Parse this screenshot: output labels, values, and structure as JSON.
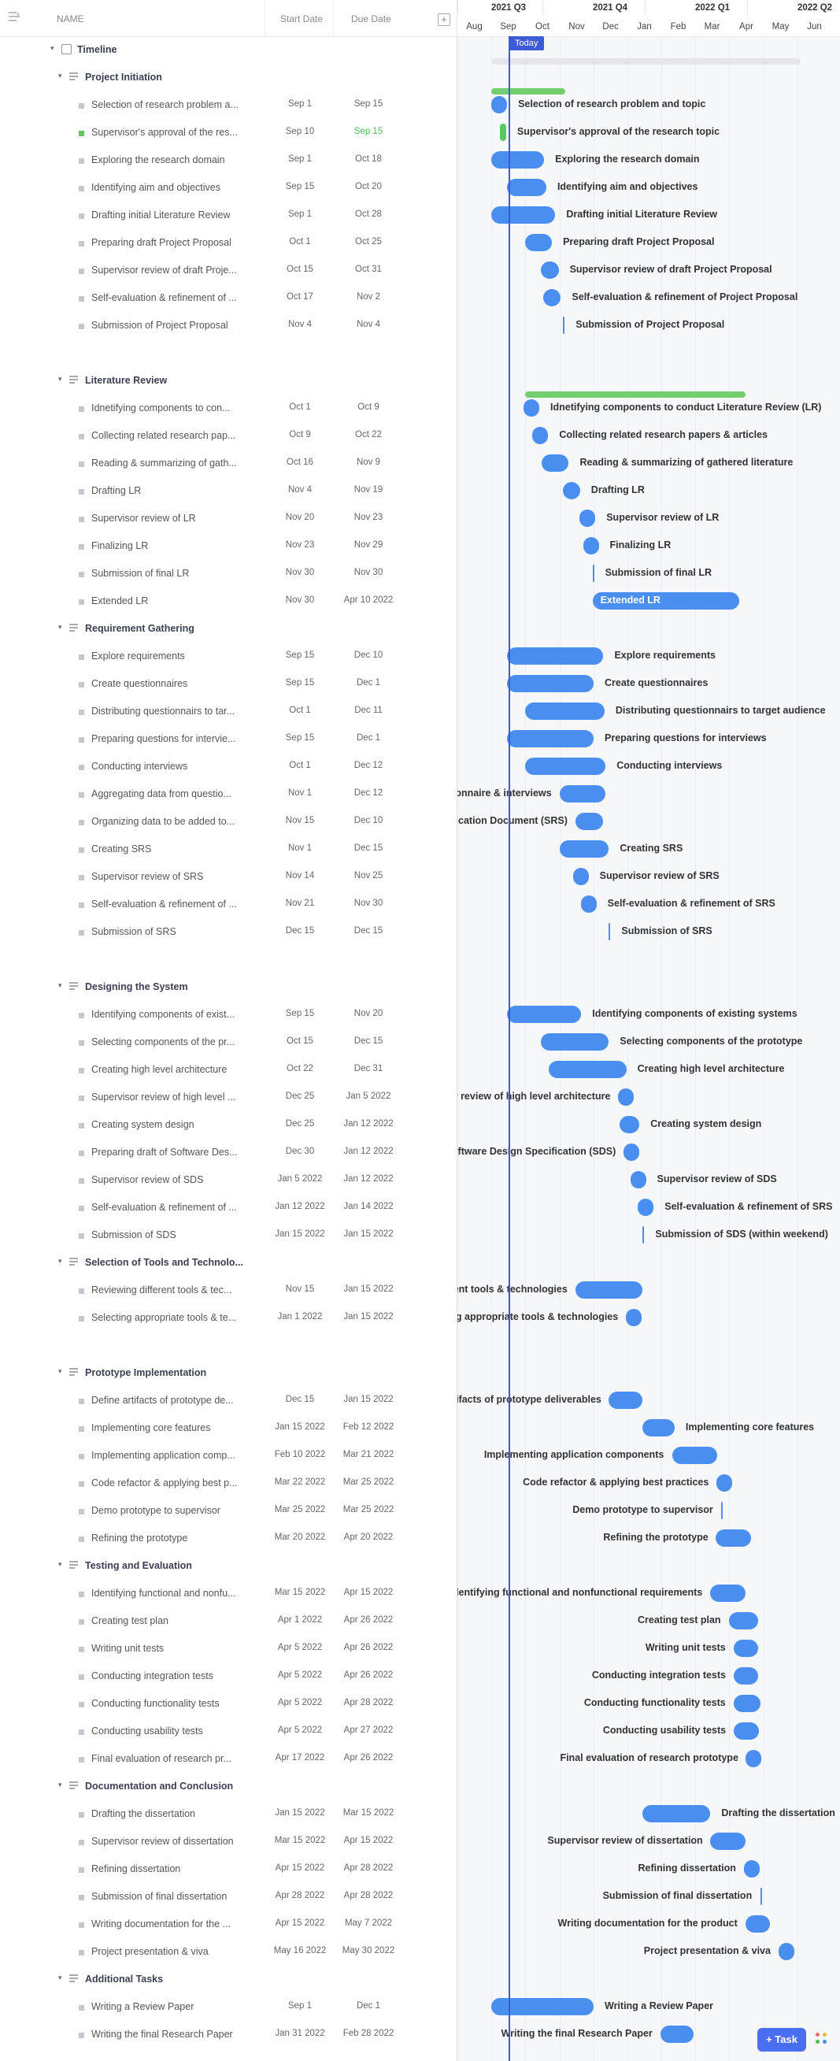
{
  "header": {
    "name": "NAME",
    "start": "Start Date",
    "due": "Due Date"
  },
  "gantt": {
    "quarters": [
      "2021 Q3",
      "2021 Q4",
      "2022 Q1",
      "2022 Q2"
    ],
    "months": [
      "Aug",
      "Sep",
      "Oct",
      "Nov",
      "Dec",
      "Jan",
      "Feb",
      "Mar",
      "Apr",
      "May",
      "Jun"
    ],
    "today": "Today"
  },
  "task_button": "+ Task",
  "rows": [
    {
      "kind": "top",
      "name": "Timeline"
    },
    {
      "kind": "group",
      "name": "Project Initiation"
    },
    {
      "kind": "task",
      "name": "Selection of research problem a...",
      "start": "Sep 1",
      "due": "Sep 15",
      "label": "Selection of research problem and topic"
    },
    {
      "kind": "task",
      "name": "Supervisor's approval of the res...",
      "start": "Sep 10",
      "due": "Sep 15",
      "label": "Supervisor's approval of the research topic",
      "status": "green"
    },
    {
      "kind": "task",
      "name": "Exploring the research domain",
      "start": "Sep 1",
      "due": "Oct 18",
      "label": "Exploring the research domain"
    },
    {
      "kind": "task",
      "name": "Identifying aim and objectives",
      "start": "Sep 15",
      "due": "Oct 20",
      "label": "Identifying aim and objectives"
    },
    {
      "kind": "task",
      "name": "Drafting initial Literature Review",
      "start": "Sep 1",
      "due": "Oct 28",
      "label": "Drafting initial Literature Review"
    },
    {
      "kind": "task",
      "name": "Preparing draft Project Proposal",
      "start": "Oct 1",
      "due": "Oct 25",
      "label": "Preparing draft Project Proposal"
    },
    {
      "kind": "task",
      "name": "Supervisor review of draft Proje...",
      "start": "Oct 15",
      "due": "Oct 31",
      "label": "Supervisor review of draft Project Proposal"
    },
    {
      "kind": "task",
      "name": "Self-evaluation & refinement of ...",
      "start": "Oct 17",
      "due": "Nov 2",
      "label": "Self-evaluation & refinement of Project Proposal"
    },
    {
      "kind": "task",
      "name": "Submission of Project Proposal",
      "start": "Nov 4",
      "due": "Nov 4",
      "label": "Submission of Project Proposal"
    },
    {
      "kind": "blank"
    },
    {
      "kind": "group",
      "name": "Literature Review"
    },
    {
      "kind": "task",
      "name": "Idnetifying components to con...",
      "start": "Oct 1",
      "due": "Oct 9",
      "label": "Idnetifying components to conduct Literature Review (LR)"
    },
    {
      "kind": "task",
      "name": "Collecting related research pap...",
      "start": "Oct 9",
      "due": "Oct 22",
      "label": "Collecting related research papers & articles"
    },
    {
      "kind": "task",
      "name": "Reading & summarizing of gath...",
      "start": "Oct 16",
      "due": "Nov 9",
      "label": "Reading & summarizing of gathered literature"
    },
    {
      "kind": "task",
      "name": "Drafting LR",
      "start": "Nov 4",
      "due": "Nov 19",
      "label": "Drafting LR"
    },
    {
      "kind": "task",
      "name": "Supervisor review of LR",
      "start": "Nov 20",
      "due": "Nov 23",
      "label": "Supervisor review of LR"
    },
    {
      "kind": "task",
      "name": "Finalizing LR",
      "start": "Nov 23",
      "due": "Nov 29",
      "label": "Finalizing LR"
    },
    {
      "kind": "task",
      "name": "Submission of final LR",
      "start": "Nov 30",
      "due": "Nov 30",
      "label": "Submission of final LR"
    },
    {
      "kind": "task",
      "name": "Extended LR",
      "start": "Nov 30",
      "due": "Apr 10 2022",
      "label": "Extended LR"
    },
    {
      "kind": "group",
      "name": "Requirement Gathering"
    },
    {
      "kind": "task",
      "name": "Explore requirements",
      "start": "Sep 15",
      "due": "Dec 10",
      "label": "Explore requirements"
    },
    {
      "kind": "task",
      "name": "Create questionnaires",
      "start": "Sep 15",
      "due": "Dec 1",
      "label": "Create questionnaires"
    },
    {
      "kind": "task",
      "name": "Distributing questionnairs to tar...",
      "start": "Oct 1",
      "due": "Dec 11",
      "label": "Distributing questionnairs to target audience"
    },
    {
      "kind": "task",
      "name": "Preparing questions for intervie...",
      "start": "Sep 15",
      "due": "Dec 1",
      "label": "Preparing questions for interviews"
    },
    {
      "kind": "task",
      "name": "Conducting interviews",
      "start": "Oct 1",
      "due": "Dec 12",
      "label": "Conducting interviews"
    },
    {
      "kind": "task",
      "name": "Aggregating data from questio...",
      "start": "Nov 1",
      "due": "Dec 12",
      "label": "Aggregating data from questionnaire & interviews"
    },
    {
      "kind": "task",
      "name": "Organizing data to be added to...",
      "start": "Nov 15",
      "due": "Dec 10",
      "label": "Organizing data to be added to Software Requirement Specification Document (SRS)"
    },
    {
      "kind": "task",
      "name": "Creating SRS",
      "start": "Nov 1",
      "due": "Dec 15",
      "label": "Creating SRS"
    },
    {
      "kind": "task",
      "name": "Supervisor review of SRS",
      "start": "Nov 14",
      "due": "Nov 25",
      "label": "Supervisor review of SRS"
    },
    {
      "kind": "task",
      "name": "Self-evaluation & refinement of ...",
      "start": "Nov 21",
      "due": "Nov 30",
      "label": "Self-evaluation & refinement of SRS"
    },
    {
      "kind": "task",
      "name": "Submission of SRS",
      "start": "Dec 15",
      "due": "Dec 15",
      "label": "Submission of SRS"
    },
    {
      "kind": "blank"
    },
    {
      "kind": "group",
      "name": "Designing the System"
    },
    {
      "kind": "task",
      "name": "Identifying components of exist...",
      "start": "Sep 15",
      "due": "Nov 20",
      "label": "Identifying components of existing systems"
    },
    {
      "kind": "task",
      "name": "Selecting components of the pr...",
      "start": "Oct 15",
      "due": "Dec 15",
      "label": "Selecting components of the prototype"
    },
    {
      "kind": "task",
      "name": "Creating high level architecture",
      "start": "Oct 22",
      "due": "Dec 31",
      "label": "Creating high level architecture"
    },
    {
      "kind": "task",
      "name": "Supervisor review of high level ...",
      "start": "Dec 25",
      "due": "Jan 5 2022",
      "label": "Supervisor review of high level architecture"
    },
    {
      "kind": "task",
      "name": "Creating system design",
      "start": "Dec 25",
      "due": "Jan 12 2022",
      "label": "Creating system design"
    },
    {
      "kind": "task",
      "name": "Preparing draft of Software Des...",
      "start": "Dec 30",
      "due": "Jan 12 2022",
      "label": "Preparing draft of Software Design Specification (SDS)"
    },
    {
      "kind": "task",
      "name": "Supervisor review of SDS",
      "start": "Jan 5 2022",
      "due": "Jan 12 2022",
      "label": "Supervisor review of SDS"
    },
    {
      "kind": "task",
      "name": "Self-evaluation & refinement of ...",
      "start": "Jan 12 2022",
      "due": "Jan 14 2022",
      "label": "Self-evaluation & refinement of SRS"
    },
    {
      "kind": "task",
      "name": "Submission of SDS",
      "start": "Jan 15 2022",
      "due": "Jan 15 2022",
      "label": "Submission of SDS (within weekend)"
    },
    {
      "kind": "group",
      "name": "Selection of Tools and Technolo..."
    },
    {
      "kind": "task",
      "name": "Reviewing different tools & tec...",
      "start": "Nov 15",
      "due": "Jan 15 2022",
      "label": "Reviewing different tools & technologies"
    },
    {
      "kind": "task",
      "name": "Selecting appropriate tools & te...",
      "start": "Jan 1 2022",
      "due": "Jan 15 2022",
      "label": "Selecting appropriate tools & technologies"
    },
    {
      "kind": "blank"
    },
    {
      "kind": "group",
      "name": "Prototype Implementation"
    },
    {
      "kind": "task",
      "name": "Define artifacts of prototype de...",
      "start": "Dec 15",
      "due": "Jan 15 2022",
      "label": "Define artifacts of prototype deliverables"
    },
    {
      "kind": "task",
      "name": "Implementing core features",
      "start": "Jan 15 2022",
      "due": "Feb 12 2022",
      "label": "Implementing core features"
    },
    {
      "kind": "task",
      "name": "Implementing application comp...",
      "start": "Feb 10 2022",
      "due": "Mar 21 2022",
      "label": "Implementing application components"
    },
    {
      "kind": "task",
      "name": "Code refactor & applying best p...",
      "start": "Mar 22 2022",
      "due": "Mar 25 2022",
      "label": "Code refactor & applying best practices"
    },
    {
      "kind": "task",
      "name": "Demo prototype to supervisor",
      "start": "Mar 25 2022",
      "due": "Mar 25 2022",
      "label": "Demo prototype to supervisor"
    },
    {
      "kind": "task",
      "name": "Refining the prototype",
      "start": "Mar 20 2022",
      "due": "Apr 20 2022",
      "label": "Refining the prototype"
    },
    {
      "kind": "group",
      "name": "Testing and Evaluation"
    },
    {
      "kind": "task",
      "name": "Identifying functional and nonfu...",
      "start": "Mar 15 2022",
      "due": "Apr 15 2022",
      "label": "Identifying functional and nonfunctional requirements"
    },
    {
      "kind": "task",
      "name": "Creating test plan",
      "start": "Apr 1 2022",
      "due": "Apr 26 2022",
      "label": "Creating test plan"
    },
    {
      "kind": "task",
      "name": "Writing unit tests",
      "start": "Apr 5 2022",
      "due": "Apr 26 2022",
      "label": "Writing unit tests"
    },
    {
      "kind": "task",
      "name": "Conducting integration tests",
      "start": "Apr 5 2022",
      "due": "Apr 26 2022",
      "label": "Conducting integration tests"
    },
    {
      "kind": "task",
      "name": "Conducting functionality tests",
      "start": "Apr 5 2022",
      "due": "Apr 28 2022",
      "label": "Conducting functionality tests"
    },
    {
      "kind": "task",
      "name": "Conducting usability tests",
      "start": "Apr 5 2022",
      "due": "Apr 27 2022",
      "label": "Conducting usability tests"
    },
    {
      "kind": "task",
      "name": "Final evaluation of research pr...",
      "start": "Apr 17 2022",
      "due": "Apr 26 2022",
      "label": "Final evaluation of research prototype"
    },
    {
      "kind": "group",
      "name": "Documentation and Conclusion"
    },
    {
      "kind": "task",
      "name": "Drafting the dissertation",
      "start": "Jan 15 2022",
      "due": "Mar 15 2022",
      "label": "Drafting the dissertation"
    },
    {
      "kind": "task",
      "name": "Supervisor review of dissertation",
      "start": "Mar 15 2022",
      "due": "Apr 15 2022",
      "label": "Supervisor review of dissertation"
    },
    {
      "kind": "task",
      "name": "Refining dissertation",
      "start": "Apr 15 2022",
      "due": "Apr 28 2022",
      "label": "Refining dissertation"
    },
    {
      "kind": "task",
      "name": "Submission of final dissertation",
      "start": "Apr 28 2022",
      "due": "Apr 28 2022",
      "label": "Submission of final dissertation"
    },
    {
      "kind": "task",
      "name": "Writing documentation for the ...",
      "start": "Apr 15 2022",
      "due": "May 7 2022",
      "label": "Writing documentation for the product"
    },
    {
      "kind": "task",
      "name": "Project presentation & viva",
      "start": "May 16 2022",
      "due": "May 30 2022",
      "label": "Project presentation & viva"
    },
    {
      "kind": "group",
      "name": "Additional Tasks"
    },
    {
      "kind": "task",
      "name": "Writing a Review Paper",
      "start": "Sep 1",
      "due": "Dec 1",
      "label": "Writing a Review Paper"
    },
    {
      "kind": "task",
      "name": "Writing the final Research Paper",
      "start": "Jan 31 2022",
      "due": "Feb 28 2022",
      "label": "Writing the final Research Paper"
    }
  ],
  "colors": {
    "bar": "#4a8ff0",
    "today": "#3c5bd6",
    "summary_green": "#73cf6d",
    "accent": "#4a6ef0"
  }
}
